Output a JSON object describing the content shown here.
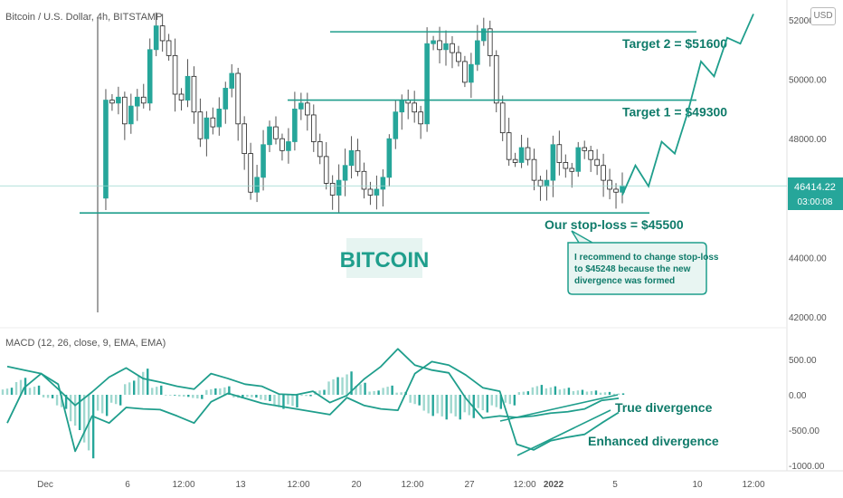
{
  "header": {
    "symbol": "Bitcoin / U.S. Dollar, 4h, BITSTAMP",
    "currency_button": "USD"
  },
  "colors": {
    "accent": "#26a69a",
    "line": "#1f9e8c",
    "label": "#0f7b6a",
    "dark_candle": "#222222"
  },
  "chart_data": [
    {
      "type": "candlestick",
      "title": "Bitcoin / U.S. Dollar, 4h, BITSTAMP",
      "ylim": [
        41000,
        52600
      ],
      "y_ticks": [
        42000,
        44000,
        46000,
        48000,
        50000,
        52000
      ],
      "y_tick_labels": [
        "42000.00",
        "44000.00",
        "46000.00",
        "48000.00",
        "50000.00",
        "52000.00"
      ],
      "x_ticks": [
        "Dec",
        "6",
        "12:00",
        "13",
        "12:00",
        "20",
        "12:00",
        "27",
        "12:00",
        "2022",
        "5",
        "10",
        "12:00"
      ],
      "current_price": "46414.22",
      "countdown": "03:00:08",
      "close_path": [
        46000,
        49300,
        49200,
        49400,
        48500,
        49100,
        49400,
        49200,
        51000,
        51800,
        51300,
        50800,
        49500,
        49300,
        50100,
        48900,
        48000,
        48700,
        48400,
        49000,
        49700,
        50200,
        48500,
        47500,
        46200,
        46700,
        47800,
        48400,
        48000,
        47600,
        47900,
        49000,
        49200,
        48800,
        47900,
        47400,
        46500,
        46100,
        46600,
        47100,
        47600,
        46900,
        46300,
        46100,
        46300,
        46700,
        48000,
        48900,
        49300,
        49200,
        48900,
        48500,
        51200,
        51300,
        51000,
        51200,
        50900,
        50600,
        49900,
        50500,
        51300,
        51700,
        50800,
        49200,
        48200,
        47300,
        47200,
        47700,
        47300,
        46600,
        46400,
        46600,
        47800,
        47200,
        47000,
        46900,
        47700,
        47600,
        47300,
        47100,
        46600,
        46300,
        46200,
        46414
      ],
      "targets": [
        {
          "label": "Target 2 = $51600",
          "value": 51600
        },
        {
          "label": "Target 1 = $49300",
          "value": 49300
        }
      ],
      "stop_loss": {
        "label": "Our stop-loss = $45500",
        "value": 45500
      },
      "projection": [
        46100,
        47100,
        46400,
        47900,
        47500,
        48900,
        50600,
        50100,
        51400,
        51200,
        52200
      ],
      "watermark": "BITCOIN",
      "callout": [
        "I recommend to change stop-loss",
        "to $45248 because the new",
        "divergence was formed"
      ]
    },
    {
      "type": "macd",
      "title": "MACD (12, 26, close, 9, EMA, EMA)",
      "ylim": [
        -1000,
        600
      ],
      "y_ticks": [
        500,
        0,
        -500,
        -1000
      ],
      "y_tick_labels": [
        "500.00",
        "0.00",
        "-500.00",
        "-1000.00"
      ],
      "macd_line": [
        -400,
        100,
        300,
        150,
        -800,
        -300,
        -400,
        -180,
        -200,
        -210,
        -300,
        -400,
        -100,
        20,
        -50,
        -120,
        -160,
        -200,
        -240,
        -280,
        -40,
        -150,
        -200,
        -220,
        300,
        470,
        420,
        280,
        100,
        50,
        -700,
        -780,
        -650,
        -600,
        -560,
        -400,
        -250
      ],
      "signal_line": [
        400,
        350,
        300,
        80,
        -150,
        40,
        250,
        380,
        230,
        180,
        120,
        80,
        300,
        230,
        150,
        120,
        10,
        0,
        50,
        -110,
        -10,
        220,
        400,
        650,
        420,
        350,
        310,
        -50,
        -330,
        -300,
        -320,
        -300,
        -260,
        -240,
        -200,
        -80,
        -50
      ],
      "histogram": [
        100,
        240,
        130,
        -50,
        -200,
        -500,
        -900,
        -300,
        -150,
        200,
        370,
        130,
        -10,
        -30,
        -60,
        90,
        120,
        -50,
        -40,
        -90,
        -200,
        -180,
        -20,
        70,
        250,
        330,
        170,
        60,
        130,
        40,
        -150,
        -300,
        -350,
        -350,
        -330,
        -250,
        -200,
        -150,
        50,
        140,
        120,
        100,
        70,
        60,
        40,
        20
      ]
    }
  ],
  "annotations": {
    "true_divergence": "True divergence",
    "enhanced_divergence": "Enhanced divergence"
  }
}
